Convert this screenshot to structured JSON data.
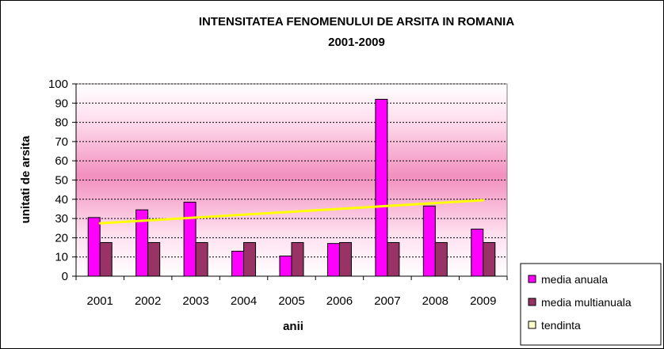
{
  "chart_data": {
    "type": "bar",
    "title": "INTENSITATEA FENOMENULUI DE ARSITA IN ROMANIA",
    "subtitle": "2001-2009",
    "xlabel": "anii",
    "ylabel": "unitati de arsita",
    "categories": [
      "2001",
      "2002",
      "2003",
      "2004",
      "2005",
      "2006",
      "2007",
      "2008",
      "2009"
    ],
    "ylim": [
      0,
      100
    ],
    "yticks": [
      "0",
      "10",
      "20",
      "30",
      "40",
      "50",
      "60",
      "70",
      "80",
      "90",
      "100"
    ],
    "grid": true,
    "legend_position": "bottom-right",
    "series": [
      {
        "name": "media anuala",
        "type": "bar",
        "color": "#ff00ff",
        "values": [
          30.5,
          34.5,
          38.5,
          13,
          10.5,
          17,
          92,
          36.5,
          24.5
        ]
      },
      {
        "name": "media multianuala",
        "type": "bar",
        "color": "#993366",
        "values": [
          17.5,
          17.5,
          17.5,
          17.5,
          17.5,
          17.5,
          17.5,
          17.5,
          17.5
        ]
      },
      {
        "name": "tendinta",
        "type": "line",
        "color": "#ffff00",
        "values": [
          27.5,
          29,
          30.5,
          32,
          33.5,
          35,
          36.5,
          38,
          39.5
        ]
      }
    ]
  }
}
